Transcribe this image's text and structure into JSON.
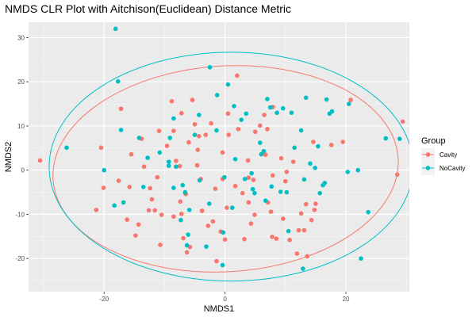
{
  "chart_data": {
    "type": "scatter",
    "title": "NMDS CLR Plot with Aitchison(Euclidean) Distance Metric",
    "xlabel": "NMDS1",
    "ylabel": "NMDS2",
    "xlim": [
      -32.5,
      30.5
    ],
    "ylim": [
      -27.5,
      33.5
    ],
    "x_ticks": [
      -20,
      0,
      20
    ],
    "y_ticks": [
      -20,
      -10,
      0,
      10,
      20,
      30
    ],
    "grid": true,
    "legend": {
      "title": "Group",
      "position": "right"
    },
    "series": [
      {
        "name": "Cavity",
        "color": "#F8766D",
        "points": [
          [
            -30.6,
            2.2
          ],
          [
            -21.3,
            -9
          ],
          [
            -20.5,
            5.1
          ],
          [
            -20.1,
            -4
          ],
          [
            -17.6,
            -2.4
          ],
          [
            -17.2,
            13.9
          ],
          [
            -16.2,
            -11.2
          ],
          [
            -15.8,
            -3.8
          ],
          [
            -15.5,
            3.6
          ],
          [
            -14.8,
            -14.8
          ],
          [
            -14.3,
            -12.3
          ],
          [
            -13.8,
            7.1
          ],
          [
            -13.4,
            0.8
          ],
          [
            -12.4,
            -4.1
          ],
          [
            -12.1,
            -6.6
          ],
          [
            -12.6,
            -9.1
          ],
          [
            -11.6,
            -9.1
          ],
          [
            -11.2,
            -1.6
          ],
          [
            -10.9,
            8.9
          ],
          [
            -10.5,
            -10.1
          ],
          [
            -10.7,
            -16.9
          ],
          [
            -9.6,
            5.5
          ],
          [
            -8.8,
            15.6
          ],
          [
            -8.5,
            8.9
          ],
          [
            -8.5,
            -10.5
          ],
          [
            -8.1,
            2.1
          ],
          [
            -7.5,
            0.9
          ],
          [
            -7.4,
            -7.1
          ],
          [
            -7.2,
            12.9
          ],
          [
            -7.2,
            -9.9
          ],
          [
            -6.9,
            -15.4
          ],
          [
            -6.5,
            -5.4
          ],
          [
            -6.5,
            -5.4
          ],
          [
            -6.3,
            -18.6
          ],
          [
            -6.0,
            6.3
          ],
          [
            -5.8,
            -17.4
          ],
          [
            -5.4,
            15.9
          ],
          [
            -5.0,
            10.4
          ],
          [
            -4.6,
            1.1
          ],
          [
            -4.5,
            4.6
          ],
          [
            -4.3,
            7.7
          ],
          [
            -4.0,
            -2.0
          ],
          [
            -3.8,
            -9.2
          ],
          [
            -3.2,
            8.0
          ],
          [
            -2.8,
            -12.6
          ],
          [
            -2.3,
            10.6
          ],
          [
            -2.0,
            -11.6
          ],
          [
            -1.6,
            -4.2
          ],
          [
            -1.4,
            -20.6
          ],
          [
            -0.7,
            -13.9
          ],
          [
            -0.4,
            -2.0
          ],
          [
            -0.4,
            4.0
          ],
          [
            0.0,
            -15.7
          ],
          [
            0.5,
            12.8
          ],
          [
            0.3,
            -8.5
          ],
          [
            0.6,
            8.0
          ],
          [
            1.7,
            -3.6
          ],
          [
            2.0,
            21.4
          ],
          [
            2.2,
            9.3
          ],
          [
            2.9,
            -5.2
          ],
          [
            3.2,
            -15.6
          ],
          [
            3.9,
            -7.3
          ],
          [
            3.9,
            -1.7
          ],
          [
            3.8,
            2.2
          ],
          [
            4.3,
            -12.1
          ],
          [
            4.7,
            -2.2
          ],
          [
            4.9,
            -10.1
          ],
          [
            5.0,
            8.7
          ],
          [
            5.8,
            10.1
          ],
          [
            6.5,
            12.5
          ],
          [
            6.7,
            3.5
          ],
          [
            7.0,
            9.3
          ],
          [
            7.1,
            -7.3
          ],
          [
            7.6,
            -9.4
          ],
          [
            7.8,
            -15.1
          ],
          [
            7.9,
            14.3
          ],
          [
            7.9,
            -1.2
          ],
          [
            8.5,
            -15.5
          ],
          [
            9.3,
            2.7
          ],
          [
            9.6,
            -11.0
          ],
          [
            10.0,
            -2.5
          ],
          [
            10.2,
            -0.4
          ],
          [
            10.7,
            -15.8
          ],
          [
            11.3,
            1.9
          ],
          [
            11.9,
            -18.9
          ],
          [
            12.2,
            -13.6
          ],
          [
            12.6,
            -9.8
          ],
          [
            13.1,
            -13.6
          ],
          [
            13.4,
            -7.7
          ],
          [
            13.6,
            -19.5
          ],
          [
            14.3,
            -11.3
          ],
          [
            14.6,
            6.4
          ],
          [
            14.8,
            -9.0
          ],
          [
            15.0,
            -7.6
          ],
          [
            17.6,
            5.7
          ],
          [
            19.5,
            6.4
          ],
          [
            20.8,
            15.9
          ],
          [
            28.5,
            -1.0
          ],
          [
            29.4,
            11.0
          ]
        ]
      },
      {
        "name": "NoCavity",
        "color": "#00BFC4",
        "points": [
          [
            -26.2,
            5.1
          ],
          [
            -18.1,
            32.0
          ],
          [
            -17.7,
            20.1
          ],
          [
            -17.2,
            9.1
          ],
          [
            -20.0,
            0.0
          ],
          [
            -18.3,
            -8.0
          ],
          [
            -16.8,
            -7.3
          ],
          [
            -14.2,
            7.3
          ],
          [
            -13.5,
            -3.8
          ],
          [
            -12.8,
            2.8
          ],
          [
            -10.8,
            4.0
          ],
          [
            -9.3,
            1.0
          ],
          [
            -9.3,
            1.9
          ],
          [
            -9.1,
            7.3
          ],
          [
            -8.5,
            11.7
          ],
          [
            -8.5,
            -4.0
          ],
          [
            -8.1,
            0.8
          ],
          [
            -7.3,
            -11.3
          ],
          [
            -7.0,
            -3.4
          ],
          [
            -6.6,
            -5.0
          ],
          [
            -6.1,
            -14.6
          ],
          [
            -6.3,
            -17.0
          ],
          [
            -5.9,
            -9.0
          ],
          [
            -5.0,
            8.0
          ],
          [
            -4.3,
            12.5
          ],
          [
            -4.2,
            -2.3
          ],
          [
            -3.1,
            -17.3
          ],
          [
            -2.6,
            -7.6
          ],
          [
            -2.5,
            23.3
          ],
          [
            -1.4,
            9.0
          ],
          [
            -1.3,
            17.0
          ],
          [
            -0.4,
            -21.5
          ],
          [
            -0.3,
            -14.1
          ],
          [
            -0.1,
            -1.6
          ],
          [
            0.5,
            19.4
          ],
          [
            1.2,
            -8.5
          ],
          [
            1.5,
            14.5
          ],
          [
            1.7,
            2.5
          ],
          [
            2.7,
            11.4
          ],
          [
            3.3,
            -2.0
          ],
          [
            3.5,
            12.8
          ],
          [
            4.4,
            -0.7
          ],
          [
            4.6,
            -4.3
          ],
          [
            4.9,
            -5.2
          ],
          [
            5.8,
            6.2
          ],
          [
            6.0,
            3.6
          ],
          [
            6.4,
            4.3
          ],
          [
            6.7,
            -6.9
          ],
          [
            7.0,
            16.1
          ],
          [
            7.5,
            14.2
          ],
          [
            7.7,
            -3.7
          ],
          [
            8.6,
            13.0
          ],
          [
            9.2,
            -4.9
          ],
          [
            9.6,
            14.0
          ],
          [
            10.2,
            -5.0
          ],
          [
            10.5,
            -13.8
          ],
          [
            11.0,
            13.0
          ],
          [
            11.5,
            5.1
          ],
          [
            12.6,
            9.0
          ],
          [
            12.9,
            -22.3
          ],
          [
            13.1,
            -2.1
          ],
          [
            13.4,
            16.4
          ],
          [
            14.1,
            1.5
          ],
          [
            14.9,
            0.5
          ],
          [
            15.4,
            5.4
          ],
          [
            15.7,
            -5.2
          ],
          [
            16.2,
            -3.4
          ],
          [
            16.5,
            -2.9
          ],
          [
            16.8,
            16.0
          ],
          [
            17.3,
            12.8
          ],
          [
            17.7,
            13.3
          ],
          [
            20.3,
            -0.4
          ],
          [
            20.5,
            15.0
          ],
          [
            22.0,
            0.0
          ],
          [
            22.5,
            -20.0
          ],
          [
            23.7,
            -9.5
          ],
          [
            26.6,
            7.2
          ],
          [
            28.9,
            7.1
          ]
        ]
      }
    ],
    "ellipses": [
      {
        "series": "Cavity",
        "cx": 0.1,
        "cy": 0.3,
        "rx": 28.6,
        "ry": 23.3,
        "angle_deg": -3.5
      },
      {
        "series": "NoCavity",
        "cx": 1.0,
        "cy": 0.8,
        "rx": 30.1,
        "ry": 25.9,
        "angle_deg": 0
      }
    ]
  }
}
